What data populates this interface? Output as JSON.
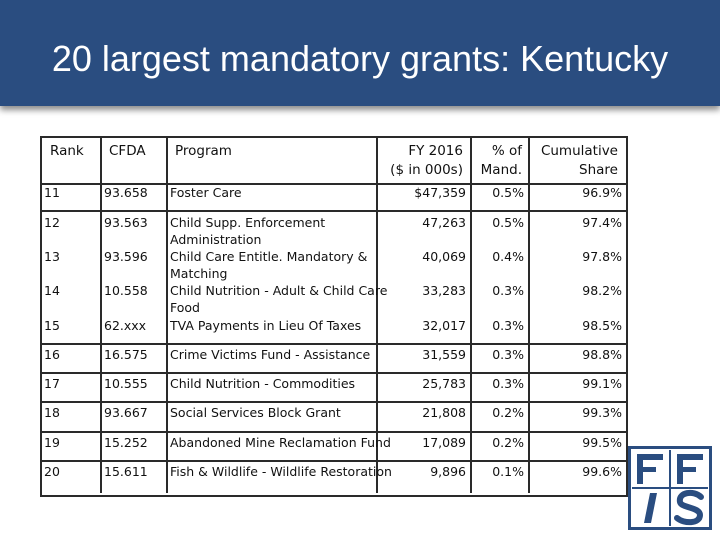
{
  "title": "20 largest mandatory grants: Kentucky",
  "columns": {
    "rank": "Rank",
    "cfda": "CFDA",
    "program": "Program",
    "fy_line1": "FY 2016",
    "fy_line2": "($ in 000s)",
    "pct_line1": "% of",
    "pct_line2": "Mand.",
    "cum_line1": "Cumulative",
    "cum_line2": "Share"
  },
  "rows": [
    {
      "rank": "11",
      "cfda": "93.658",
      "program": "Foster Care",
      "fy": "$47,359",
      "pct": "0.5%",
      "cum": "96.9%"
    },
    {
      "rank": "12",
      "cfda": "93.563",
      "program_line1": "Child Supp. Enforcement",
      "program_line2": "Administration",
      "fy": "47,263",
      "pct": "0.5%",
      "cum": "97.4%"
    },
    {
      "rank": "13",
      "cfda": "93.596",
      "program_line1": "Child Care Entitle. Mandatory &",
      "program_line2": "Matching",
      "fy": "40,069",
      "pct": "0.4%",
      "cum": "97.8%"
    },
    {
      "rank": "14",
      "cfda": "10.558",
      "program_line1": "Child Nutrition - Adult & Child Care",
      "program_line2": "Food",
      "fy": "33,283",
      "pct": "0.3%",
      "cum": "98.2%"
    },
    {
      "rank": "15",
      "cfda": "62.xxx",
      "program": "TVA Payments in Lieu Of Taxes",
      "fy": "32,017",
      "pct": "0.3%",
      "cum": "98.5%"
    },
    {
      "rank": "16",
      "cfda": "16.575",
      "program": "Crime Victims Fund - Assistance",
      "fy": "31,559",
      "pct": "0.3%",
      "cum": "98.8%"
    },
    {
      "rank": "17",
      "cfda": "10.555",
      "program": "Child Nutrition - Commodities",
      "fy": "25,783",
      "pct": "0.3%",
      "cum": "99.1%"
    },
    {
      "rank": "18",
      "cfda": "93.667",
      "program": "Social Services Block Grant",
      "fy": "21,808",
      "pct": "0.2%",
      "cum": "99.3%"
    },
    {
      "rank": "19",
      "cfda": "15.252",
      "program": "Abandoned Mine Reclamation Fund",
      "fy": "17,089",
      "pct": "0.2%",
      "cum": "99.5%"
    },
    {
      "rank": "20",
      "cfda": "15.611",
      "program": "Fish & Wildlife - Wildlife Restoration",
      "fy": "9,896",
      "pct": "0.1%",
      "cum": "99.6%"
    }
  ],
  "logo": {
    "text": "FFIS",
    "color": "#2a4d80"
  }
}
